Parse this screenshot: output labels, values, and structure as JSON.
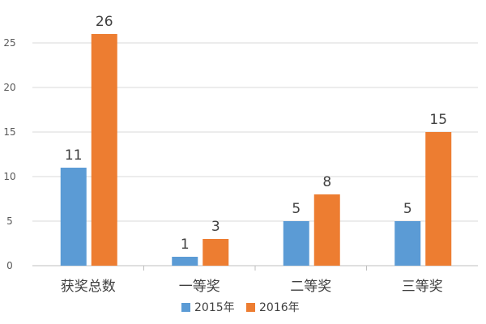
{
  "chart_data": {
    "type": "bar",
    "title": "",
    "xlabel": "",
    "ylabel": "",
    "categories": [
      "获奖总数",
      "一等奖",
      "二等奖",
      "三等奖"
    ],
    "series": [
      {
        "name": "2015年",
        "values": [
          11,
          1,
          5,
          5
        ],
        "color": "#5B9BD5"
      },
      {
        "name": "2016年",
        "values": [
          26,
          3,
          8,
          15
        ],
        "color": "#ED7D31"
      }
    ],
    "ylim": [
      0,
      28
    ],
    "yticks": [
      0,
      5,
      10,
      15,
      20,
      25
    ],
    "grid": true,
    "legend_position": "bottom",
    "data_labels": true
  }
}
